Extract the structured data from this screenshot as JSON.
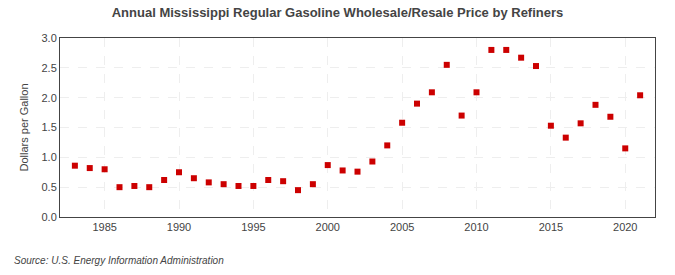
{
  "chart_data": {
    "type": "scatter",
    "title": "Annual Mississippi Regular Gasoline Wholesale/Resale Price by Refiners",
    "ylabel": "Dollars per Gallon",
    "annotations": [
      "Source: U.S. Energy Information Administration"
    ],
    "x": [
      1983,
      1984,
      1985,
      1986,
      1987,
      1988,
      1989,
      1990,
      1991,
      1992,
      1993,
      1994,
      1995,
      1996,
      1997,
      1998,
      1999,
      2000,
      2001,
      2002,
      2003,
      2004,
      2005,
      2006,
      2007,
      2008,
      2009,
      2010,
      2011,
      2012,
      2013,
      2014,
      2015,
      2016,
      2017,
      2018,
      2019,
      2020,
      2021
    ],
    "values": [
      0.86,
      0.82,
      0.8,
      0.5,
      0.52,
      0.5,
      0.62,
      0.75,
      0.65,
      0.58,
      0.55,
      0.52,
      0.52,
      0.62,
      0.6,
      0.45,
      0.55,
      0.87,
      0.78,
      0.76,
      0.93,
      1.2,
      1.58,
      1.9,
      2.09,
      2.55,
      1.7,
      2.09,
      2.8,
      2.8,
      2.67,
      2.53,
      1.53,
      1.33,
      1.57,
      1.88,
      1.68,
      1.15,
      2.04
    ],
    "color": "#cc0000",
    "marker": "square",
    "xlim": [
      1982,
      2022
    ],
    "xticks": [
      1985,
      1990,
      1995,
      2000,
      2005,
      2010,
      2015,
      2020
    ],
    "ylim": [
      0.0,
      3.0
    ],
    "yticks": [
      {
        "value": 0.0,
        "label": "0.0"
      },
      0.5,
      {
        "value": 1.0,
        "label": "1.0"
      },
      1.5,
      {
        "value": 2.0,
        "label": "2.0"
      },
      2.5,
      {
        "value": 3.0,
        "label": "3.0"
      }
    ],
    "grid": true
  }
}
